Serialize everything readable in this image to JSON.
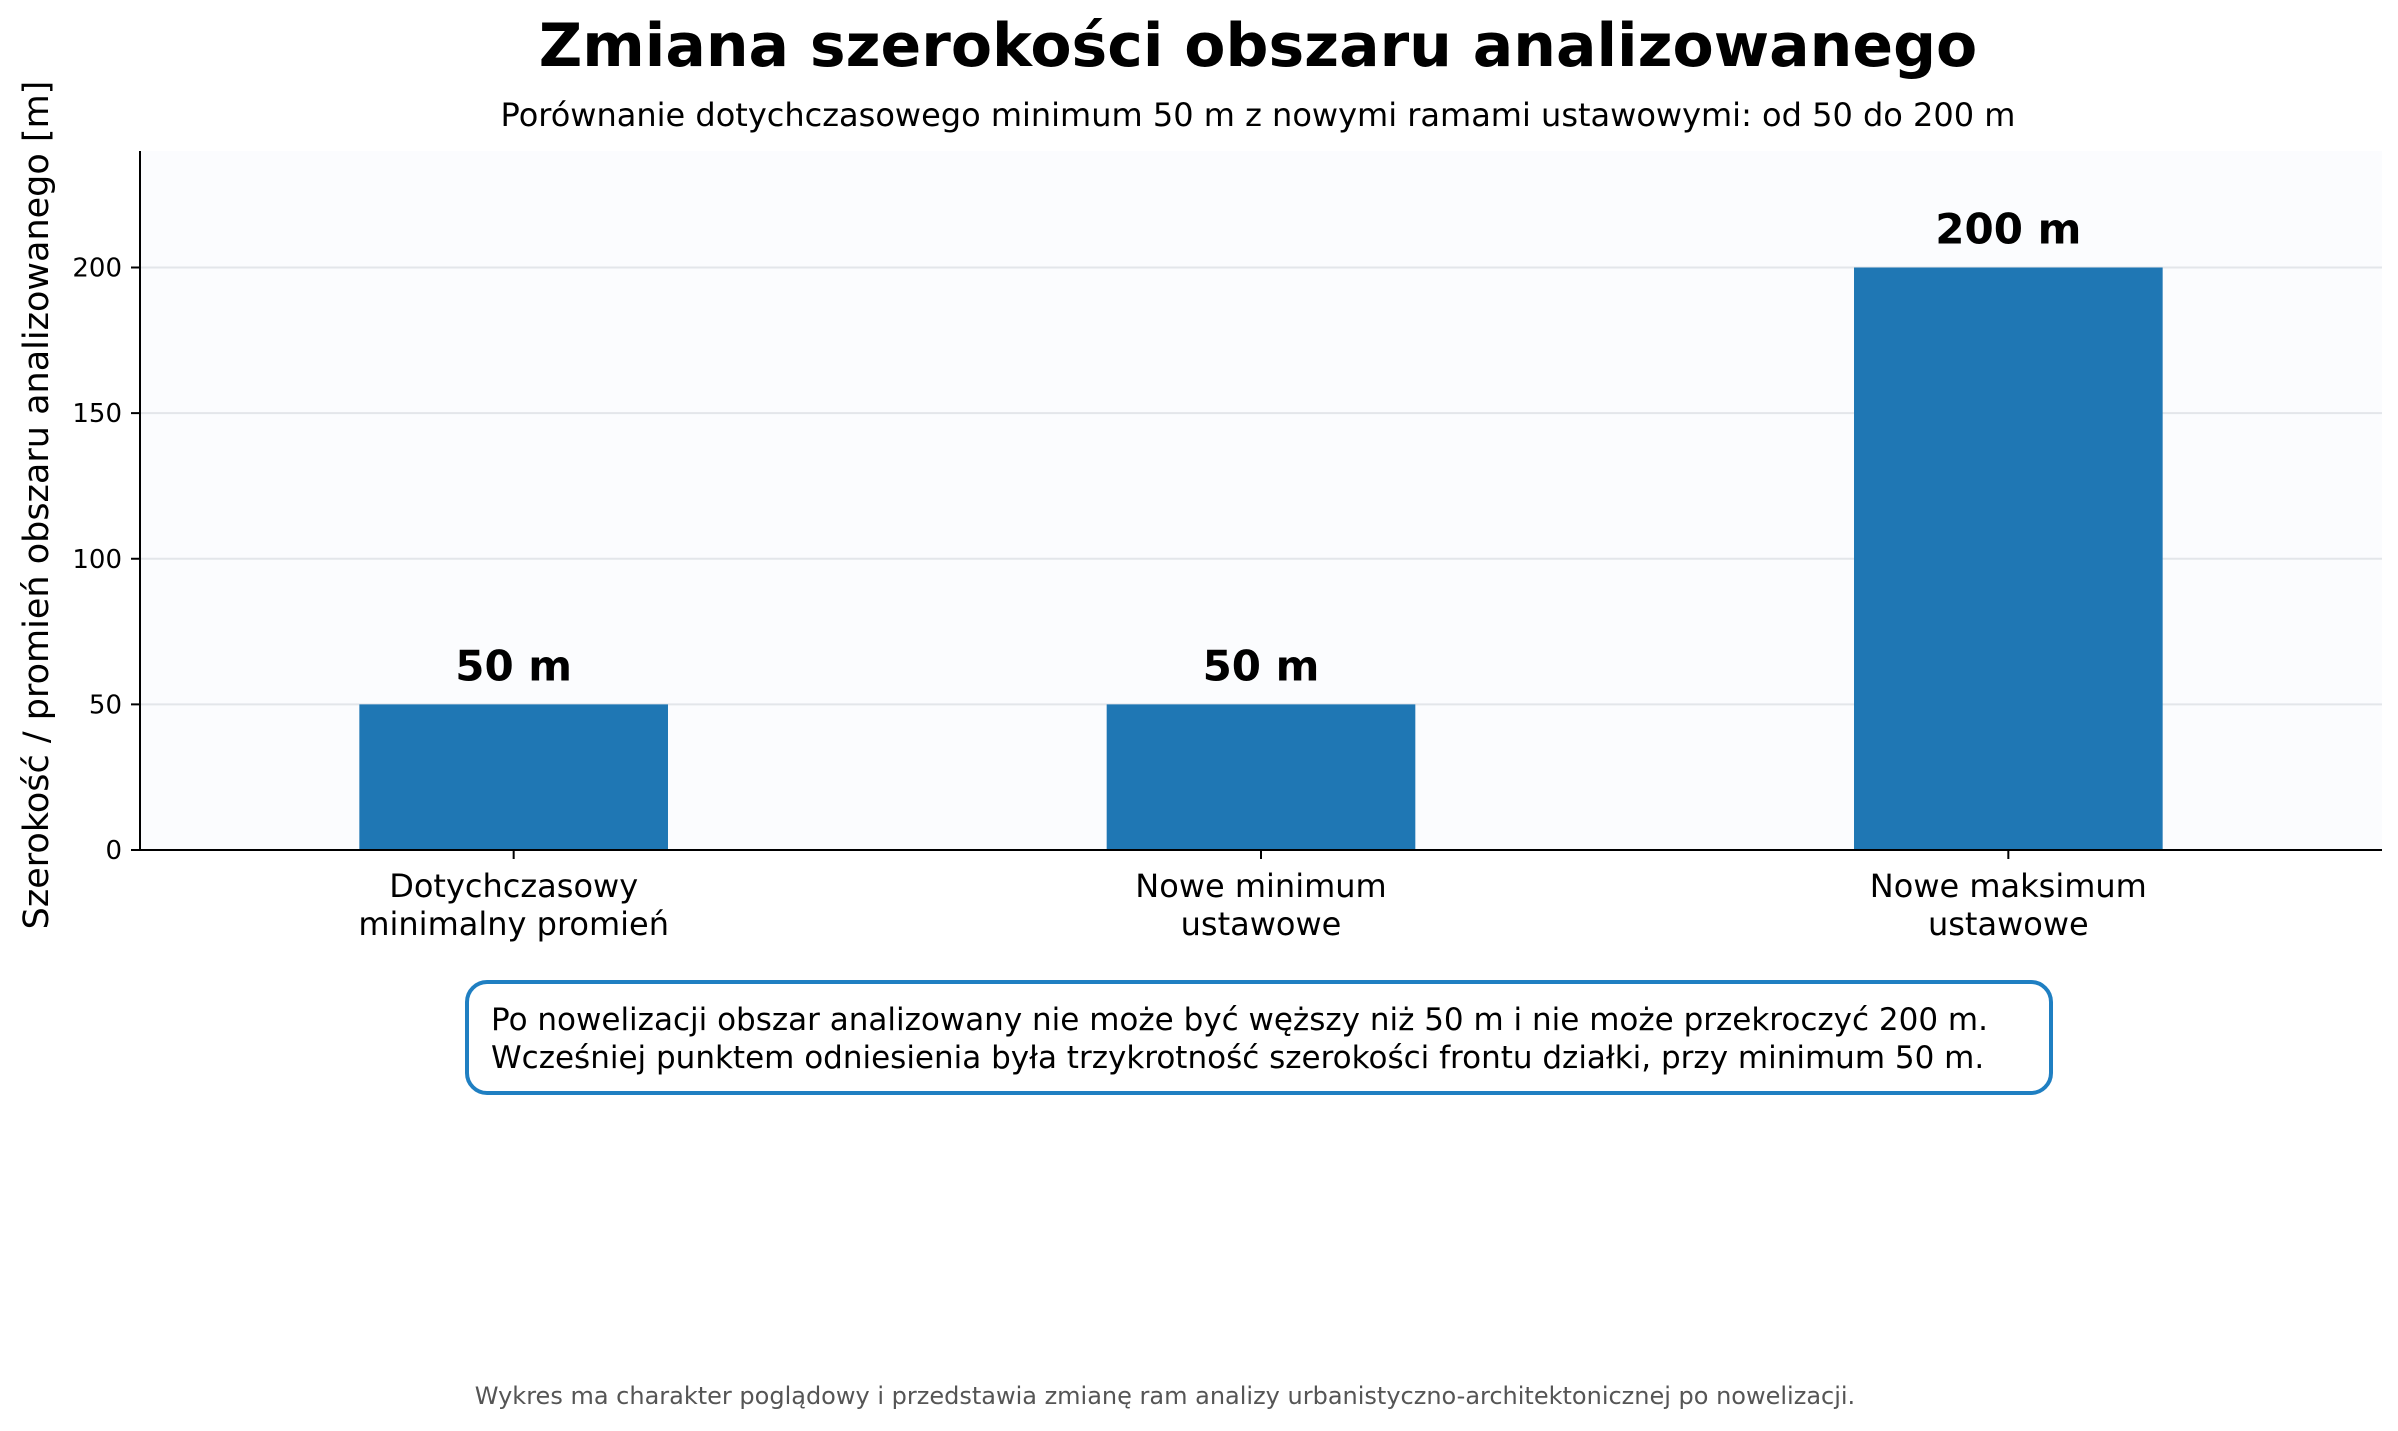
{
  "chart_data": {
    "type": "bar",
    "title": "Zmiana szerokości obszaru analizowanego",
    "subtitle": "Porównanie dotychczasowego minimum 50 m z nowymi ramami ustawowymi: od 50 do 200 m",
    "ylabel": "Szerokość / promień obszaru analizowanego [m]",
    "xlabel": "",
    "ylim": [
      0,
      240
    ],
    "yticks": [
      "0",
      "50",
      "100",
      "150",
      "200"
    ],
    "grid": "horizontal",
    "categories": [
      "Dotychczasowy\nminimalny promień",
      "Nowe minimum\nustawowe",
      "Nowe maksimum\nustawowe"
    ],
    "values": [
      50,
      50,
      200
    ],
    "data_labels": [
      "50 m",
      "50 m",
      "200 m"
    ],
    "colors": {
      "bar": "#1f77b4",
      "plot_bg": "#fbfcfe",
      "grid": "#e3e6ea",
      "annotation_border": "#1f7fc2"
    }
  },
  "annotation": {
    "line1": "Po nowelizacji obszar analizowany nie może być węższy niż 50 m i nie może przekroczyć 200 m.",
    "line2": "Wcześniej punktem odniesienia była trzykrotność szerokości frontu działki, przy minimum 50 m."
  },
  "footnote": "Wykres ma charakter poglądowy i przedstawia zmianę ram analizy urbanistyczno-architektonicznej po nowelizacji."
}
